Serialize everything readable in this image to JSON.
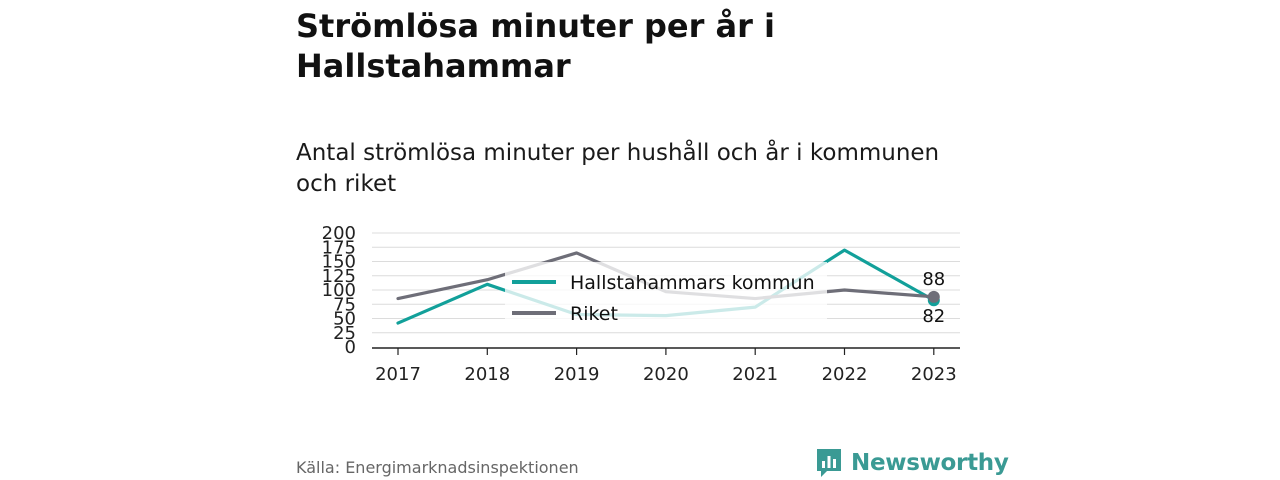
{
  "title": "Strömlösa minuter per år i Hallstahammar",
  "subtitle": "Antal strömlösa minuter per hushåll och år i kommunen och riket",
  "source": "Källa: Energimarknadsinspektionen",
  "brand": {
    "name": "Newsworthy",
    "icon": "bar-chart-logo-icon",
    "color": "#3a9a94"
  },
  "chart_data": {
    "type": "line",
    "x": [
      "2017",
      "2018",
      "2019",
      "2020",
      "2021",
      "2022",
      "2023"
    ],
    "yticks": [
      "0",
      "25",
      "50",
      "75",
      "100",
      "125",
      "150",
      "175",
      "200"
    ],
    "ylim": [
      0,
      200
    ],
    "grid": true,
    "legend_position": "center",
    "series": [
      {
        "name": "Hallstahammars kommun",
        "color": "#12a09a",
        "values": [
          42,
          110,
          57,
          55,
          70,
          170,
          82
        ]
      },
      {
        "name": "Riket",
        "color": "#6e6e78",
        "values": [
          85,
          118,
          165,
          97,
          85,
          100,
          88
        ]
      }
    ],
    "end_labels": [
      "82",
      "88"
    ]
  }
}
